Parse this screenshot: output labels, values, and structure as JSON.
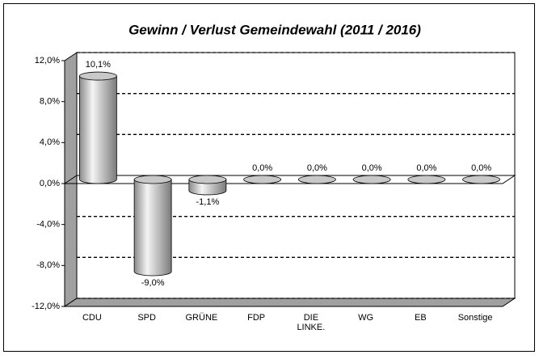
{
  "chart_data": {
    "type": "bar3d",
    "title": "Gewinn / Verlust Gemeindewahl (2011 / 2016)",
    "categories": [
      "CDU",
      "SPD",
      "GRÜNE",
      "FDP",
      "DIE LINKE.",
      "WG",
      "EB",
      "Sonstige"
    ],
    "values": [
      10.1,
      -9.0,
      -1.1,
      0,
      0,
      0,
      0,
      0
    ],
    "value_labels": [
      "10,1%",
      "-9,0%",
      "-1,1%",
      "0,0%",
      "0,0%",
      "0,0%",
      "0,0%",
      "0,0%"
    ],
    "color": "#c0c0c0",
    "ylim": [
      -12,
      12
    ],
    "yticks": [
      {
        "value": -12,
        "label": "-12,0%"
      },
      {
        "value": -8,
        "label": "-8,0%"
      },
      {
        "value": -4,
        "label": "-4,0%"
      },
      {
        "value": 0,
        "label": "0,0%"
      },
      {
        "value": 4,
        "label": "4,0%"
      },
      {
        "value": 8,
        "label": "8,0%"
      },
      {
        "value": 12,
        "label": "12,0%"
      }
    ],
    "grid": true
  }
}
